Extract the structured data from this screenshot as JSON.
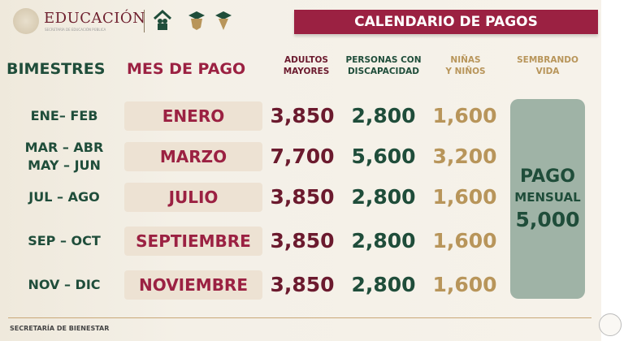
{
  "header": {
    "logo_text": "EDUCACIÓN",
    "logo_subtitle": "SECRETARÍA DE EDUCACIÓN PÚBLICA",
    "title": "CALENDARIO DE PAGOS"
  },
  "columns": {
    "bimestres": "BIMESTRES",
    "mes": "MES DE PAGO",
    "adultos": [
      "ADULTOS",
      "MAYORES"
    ],
    "personas": [
      "PERSONAS CON",
      "DISCAPACIDAD"
    ],
    "ninas": [
      "NIÑAS",
      "Y NIÑOS"
    ],
    "sembrando": [
      "SEMBRANDO",
      "VIDA"
    ]
  },
  "rows": [
    {
      "bimestre": [
        "ENE– FEB"
      ],
      "mes": "ENERO",
      "adultos": "3,850",
      "personas": "2,800",
      "ninas": "1,600"
    },
    {
      "bimestre": [
        "MAR – ABR",
        "MAY – JUN"
      ],
      "mes": "MARZO",
      "adultos": "7,700",
      "personas": "5,600",
      "ninas": "3,200"
    },
    {
      "bimestre": [
        "JUL – AGO"
      ],
      "mes": "JULIO",
      "adultos": "3,850",
      "personas": "2,800",
      "ninas": "1,600"
    },
    {
      "bimestre": [
        "SEP – OCT"
      ],
      "mes": "SEPTIEMBRE",
      "adultos": "3,850",
      "personas": "2,800",
      "ninas": "1,600"
    },
    {
      "bimestre": [
        "NOV – DIC"
      ],
      "mes": "NOVIEMBRE",
      "adultos": "3,850",
      "personas": "2,800",
      "ninas": "1,600"
    }
  ],
  "sembrando_box": {
    "line1": "PAGO",
    "line2": "MENSUAL",
    "amount": "5,000"
  },
  "footer": "SECRETARÍA DE BIENESTAR",
  "colors": {
    "green": "#1f4d3a",
    "maroon": "#9b2142",
    "dark_red": "#6b1a2e",
    "gold": "#b8955a",
    "sage": "#9fb3a6"
  }
}
